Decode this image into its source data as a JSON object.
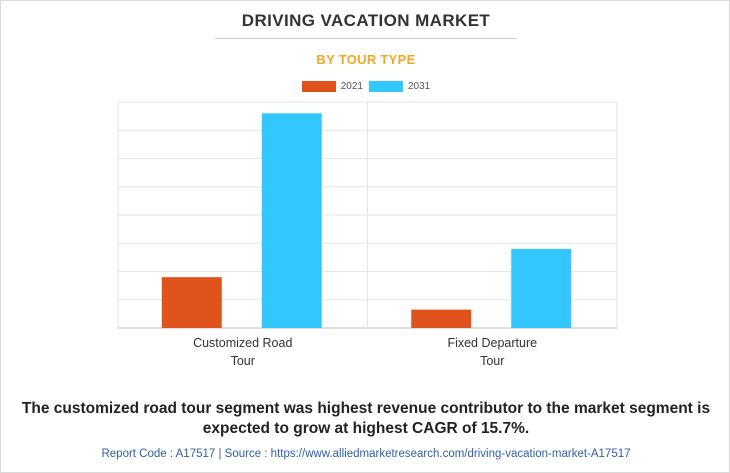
{
  "chart_data": {
    "type": "bar",
    "title": "DRIVING VACATION MARKET",
    "subtitle": "BY TOUR TYPE",
    "categories": [
      [
        "Customized Road",
        "Tour"
      ],
      [
        "Fixed Departure",
        "Tour"
      ]
    ],
    "series": [
      {
        "name": "2021",
        "color": "#e0531c",
        "values": [
          18,
          6.5
        ]
      },
      {
        "name": "2031",
        "color": "#33c7ff",
        "values": [
          76,
          28
        ]
      }
    ],
    "ylim": [
      0,
      80
    ],
    "grid": true,
    "xlabel": "",
    "ylabel": "",
    "legend_position": "top-center"
  },
  "caption": "The customized road tour segment was highest revenue contributor to the market segment is expected to grow at highest CAGR of 15.7%.",
  "footer": "Report Code : A17517  |  Source : https://www.alliedmarketresearch.com/driving-vacation-market-A17517"
}
